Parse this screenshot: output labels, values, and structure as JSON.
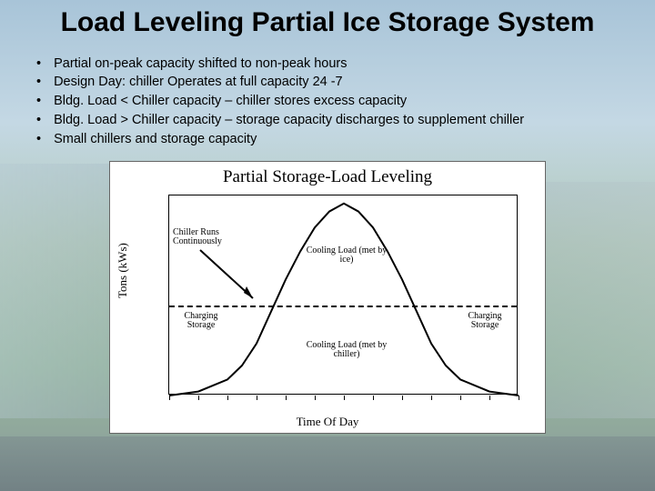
{
  "title": "Load Leveling Partial Ice Storage System",
  "bullets": [
    "Partial on-peak capacity shifted to non-peak hours",
    "Design Day: chiller Operates at full capacity 24 -7",
    "Bldg. Load < Chiller capacity – chiller stores excess capacity",
    "Bldg. Load > Chiller capacity – storage capacity discharges to supplement chiller",
    "Small chillers and storage capacity"
  ],
  "chart": {
    "type": "line",
    "title": "Partial Storage-Load Leveling",
    "ylabel": "Tons (kWs)",
    "xlabel": "Time Of Day",
    "background_color": "#ffffff",
    "border_color": "#000000",
    "x_hours": [
      0,
      2,
      4,
      6,
      8,
      10,
      12,
      14,
      16,
      18,
      20,
      22,
      24
    ],
    "xlim": [
      0,
      24
    ],
    "ylim": [
      0,
      100
    ],
    "chiller_level_pct": 45,
    "load_curve": {
      "x": [
        0,
        2,
        4,
        5,
        6,
        7,
        8,
        9,
        10,
        11,
        12,
        13,
        14,
        15,
        16,
        17,
        18,
        19,
        20,
        22,
        24
      ],
      "y": [
        0,
        2,
        8,
        15,
        26,
        42,
        58,
        72,
        84,
        92,
        96,
        92,
        84,
        72,
        58,
        42,
        26,
        15,
        8,
        2,
        0
      ],
      "color": "#000000",
      "width": 2
    },
    "annotations": {
      "chiller_runs": "Chiller Runs Continuously",
      "cooling_load_ice": "Cooling Load (met by ice)",
      "cooling_load_chiller": "Cooling Load (met by chiller)",
      "charging_left": "Charging Storage",
      "charging_right": "Charging Storage"
    },
    "ann_fontsize": 10,
    "title_fontsize": 19,
    "label_fontsize": 13
  }
}
